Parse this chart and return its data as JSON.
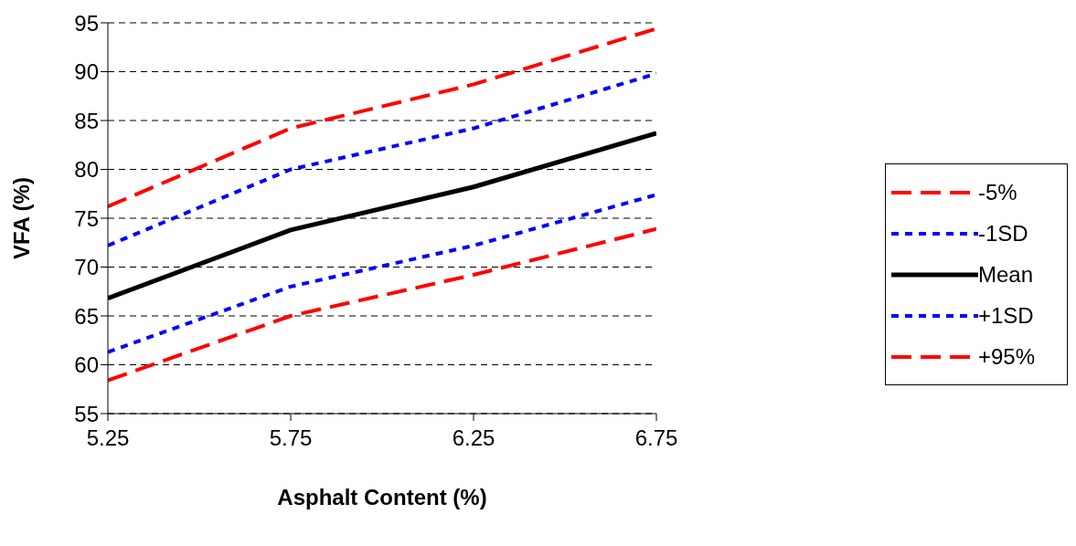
{
  "chart_data": {
    "type": "line",
    "xlabel": "Asphalt Content (%)",
    "ylabel": "VFA (%)",
    "x": [
      5.25,
      5.75,
      6.25,
      6.75
    ],
    "xlim": [
      5.25,
      6.75
    ],
    "xticks": [
      5.25,
      5.75,
      6.25,
      6.75
    ],
    "ylim": [
      55,
      95
    ],
    "yticks": [
      55,
      60,
      65,
      70,
      75,
      80,
      85,
      90,
      95
    ],
    "grid": "y",
    "legend": "right",
    "marker": "none",
    "series": [
      {
        "name": "-5%",
        "color": "#ff0000",
        "line_style": "dashed",
        "values": [
          76.2,
          84.2,
          88.7,
          94.4
        ]
      },
      {
        "name": "-1SD",
        "color": "#0000ff",
        "line_style": "dotted",
        "values": [
          72.2,
          80.0,
          84.2,
          89.8
        ]
      },
      {
        "name": "Mean",
        "color": "#000000",
        "line_style": "solid",
        "values": [
          66.8,
          73.8,
          78.2,
          83.7
        ]
      },
      {
        "name": "+1SD",
        "color": "#0000ff",
        "line_style": "dotted",
        "values": [
          61.3,
          68.0,
          72.2,
          77.4
        ]
      },
      {
        "name": "+95%",
        "color": "#ff0000",
        "line_style": "dashed",
        "values": [
          58.4,
          65.0,
          69.2,
          73.9
        ]
      }
    ]
  }
}
